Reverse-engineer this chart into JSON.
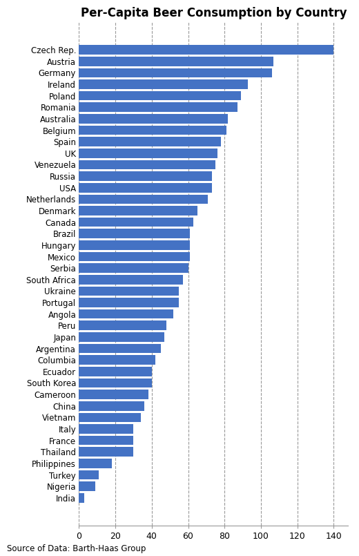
{
  "title": "Per-Capita Beer Consumption by Country",
  "source": "Source of Data: Barth-Haas Group",
  "bar_color": "#4472C4",
  "countries": [
    "Czech Rep.",
    "Austria",
    "Germany",
    "Ireland",
    "Poland",
    "Romania",
    "Australia",
    "Belgium",
    "Spain",
    "UK",
    "Venezuela",
    "Russia",
    "USA",
    "Netherlands",
    "Denmark",
    "Canada",
    "Brazil",
    "Hungary",
    "Mexico",
    "Serbia",
    "South Africa",
    "Ukraine",
    "Portugal",
    "Angola",
    "Peru",
    "Japan",
    "Argentina",
    "Columbia",
    "Ecuador",
    "South Korea",
    "Cameroon",
    "China",
    "Vietnam",
    "Italy",
    "France",
    "Thailand",
    "Philippines",
    "Turkey",
    "Nigeria",
    "India"
  ],
  "values": [
    140,
    107,
    106,
    93,
    89,
    87,
    82,
    81,
    78,
    76,
    75,
    73,
    73,
    71,
    65,
    63,
    61,
    61,
    61,
    60,
    57,
    55,
    55,
    52,
    48,
    47,
    45,
    42,
    40,
    40,
    38,
    36,
    34,
    30,
    30,
    30,
    18,
    11,
    9,
    3
  ],
  "xlim": [
    0,
    148
  ],
  "xticks": [
    0,
    20,
    40,
    60,
    80,
    100,
    120,
    140
  ],
  "grid_color": "#999999",
  "background_color": "#FFFFFF",
  "title_fontsize": 12,
  "label_fontsize": 8.5,
  "tick_fontsize": 9,
  "source_fontsize": 8.5,
  "bar_height": 0.82
}
